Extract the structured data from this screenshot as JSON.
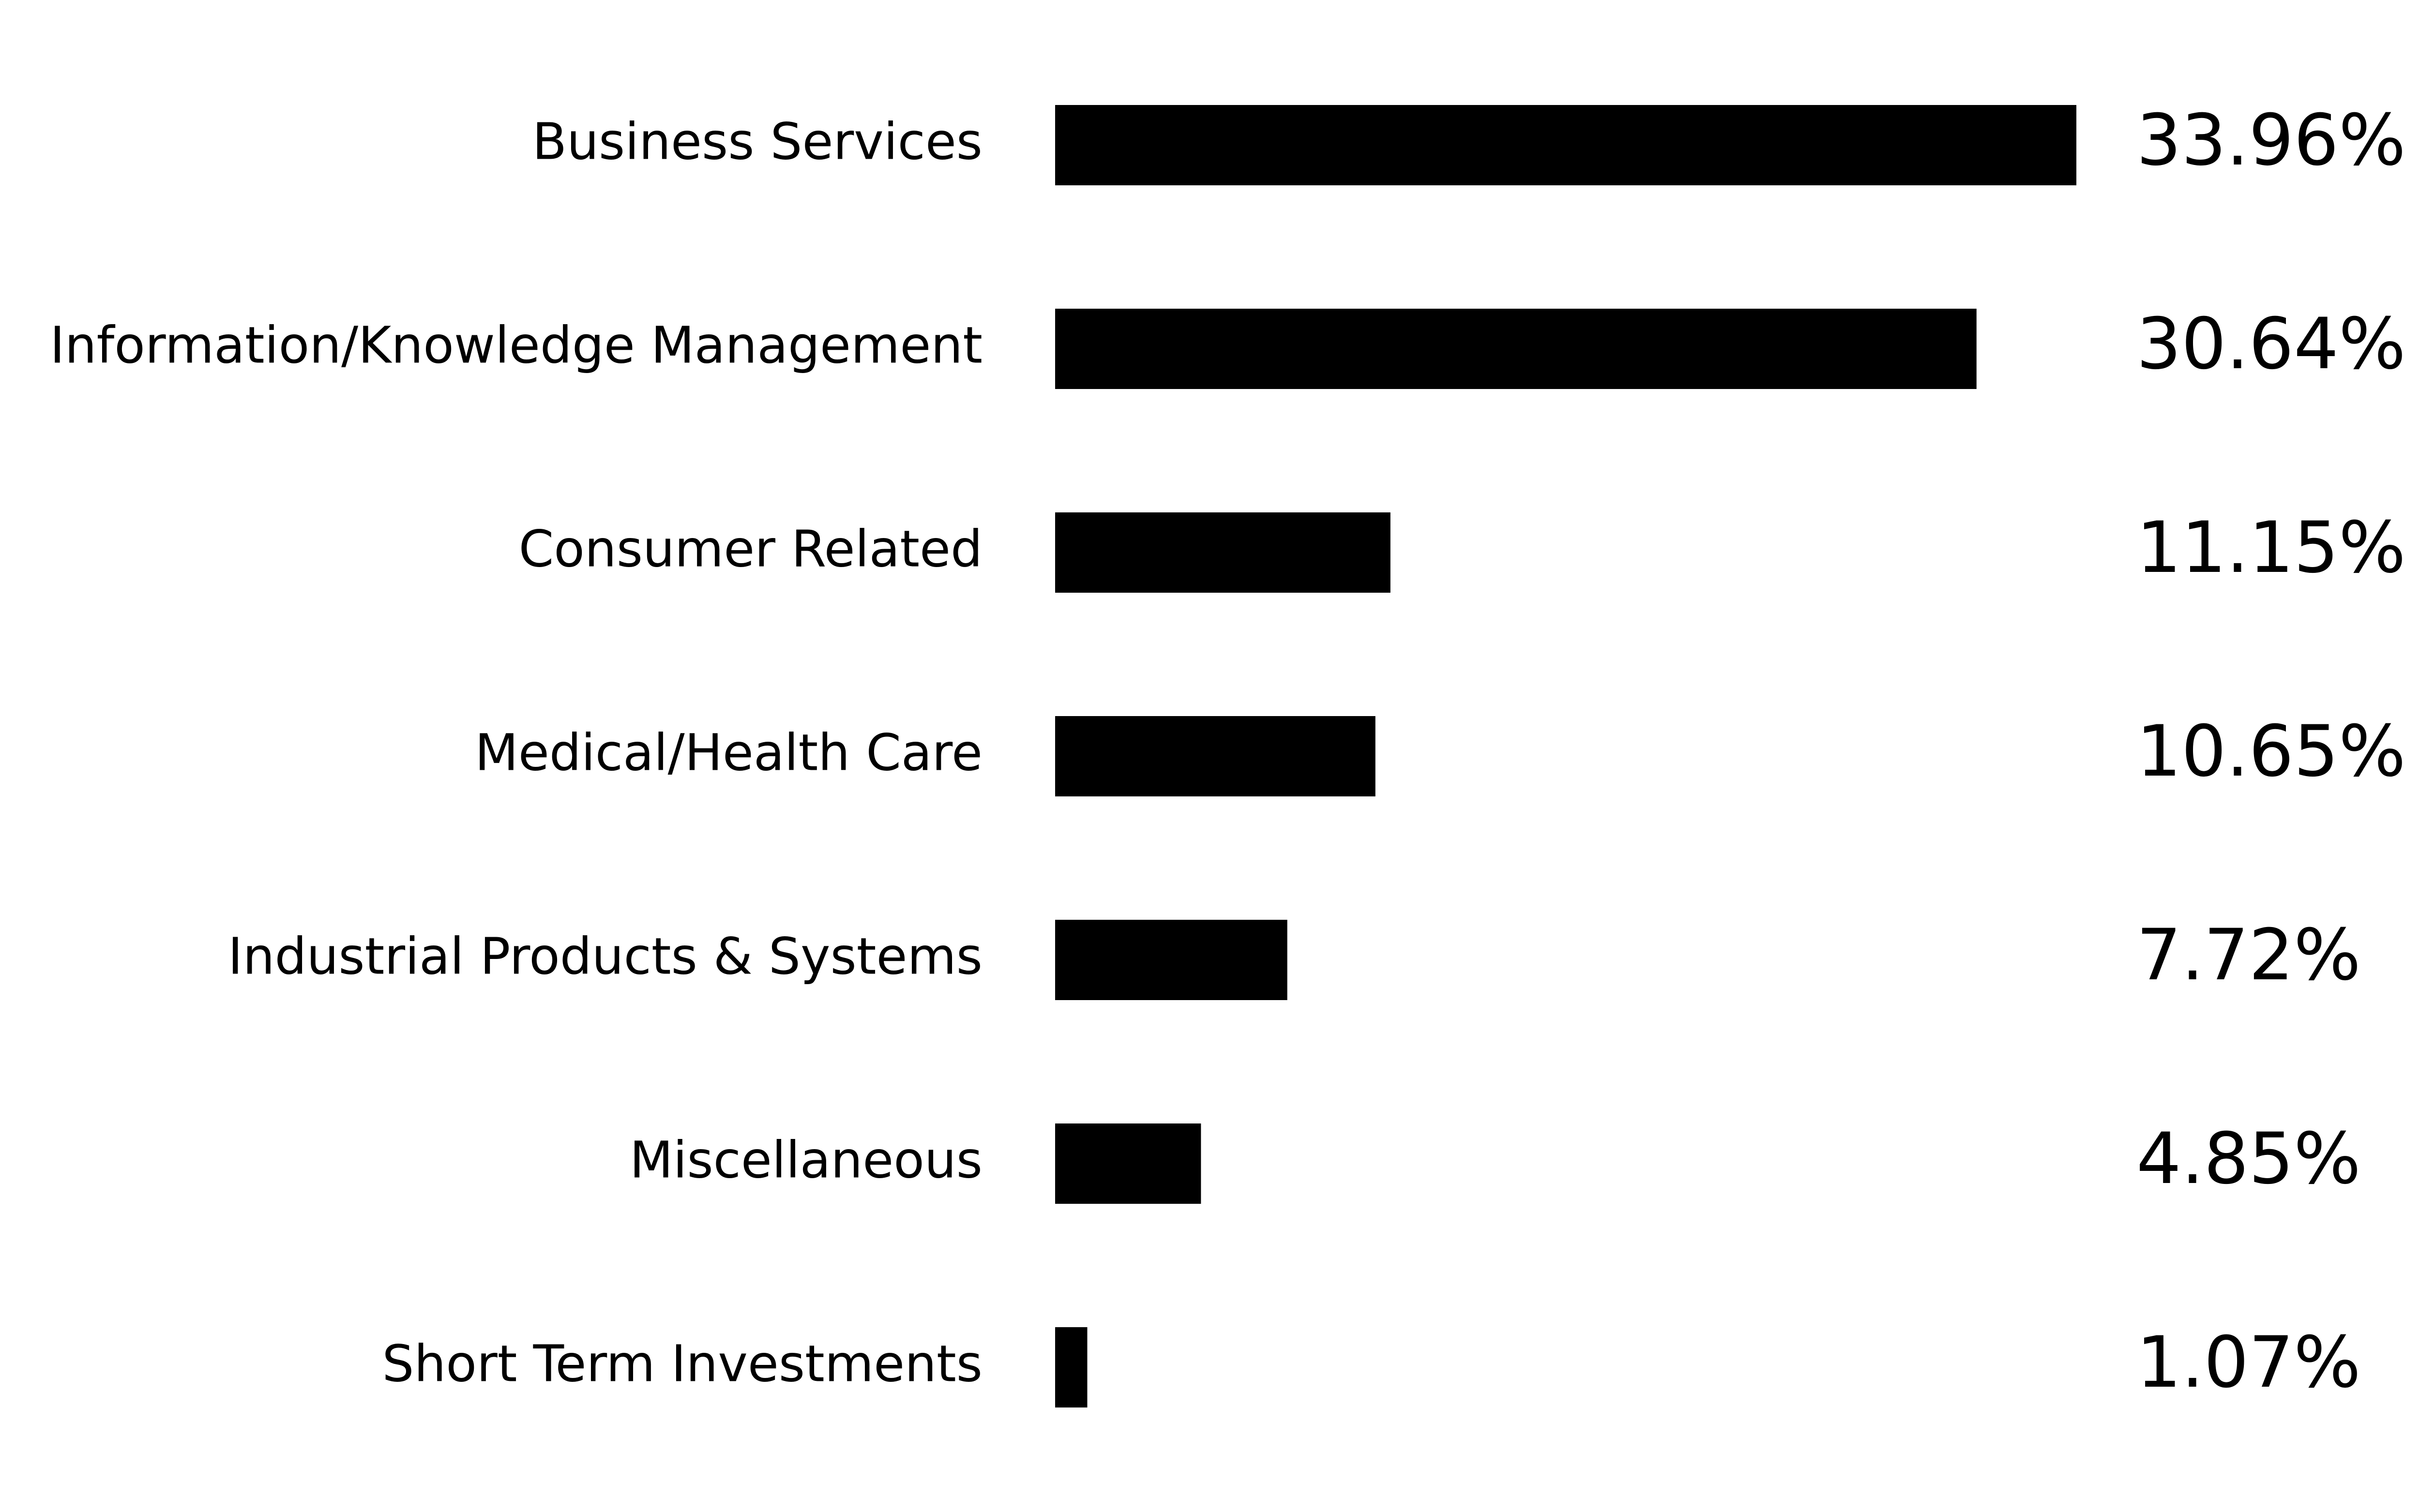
{
  "chart_data": {
    "type": "bar",
    "orientation": "horizontal",
    "categories": [
      "Business Services",
      "Information/Knowledge Management",
      "Consumer Related",
      "Medical/Health Care",
      "Industrial Products & Systems",
      "Miscellaneous",
      "Short Term Investments"
    ],
    "values": [
      33.96,
      30.64,
      11.15,
      10.65,
      7.72,
      4.85,
      1.07
    ],
    "value_labels": [
      "33.96%",
      "30.64%",
      "11.15%",
      "10.65%",
      "7.72%",
      "4.85%",
      "1.07%"
    ],
    "color": "#000000"
  }
}
